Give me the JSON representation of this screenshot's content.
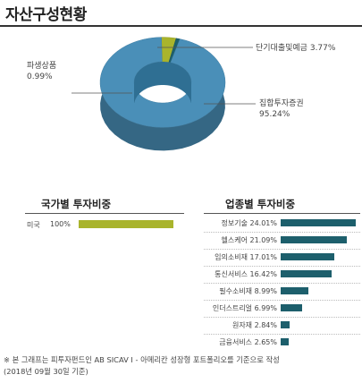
{
  "title": "자산구성현황",
  "chart_data": [
    {
      "type": "pie",
      "title": "",
      "slices": [
        {
          "label": "집합투자증권",
          "value": 95.24,
          "value_label": "95.24%",
          "color": "#4a8fb8"
        },
        {
          "label": "단기대출및예금",
          "value": 3.77,
          "value_label": "3.77%",
          "color": "#a9b42c"
        },
        {
          "label": "파생상품",
          "value": 0.99,
          "value_label": "0.99%",
          "color": "#1d5f6c"
        }
      ]
    },
    {
      "type": "bar",
      "title": "국가별 투자비중",
      "categories": [
        "미국"
      ],
      "values": [
        100
      ],
      "value_labels": [
        "100%"
      ],
      "color": "#a9b42c"
    },
    {
      "type": "bar",
      "title": "업종별 투자비중",
      "categories": [
        "정보기술",
        "헬스케어",
        "임의소비재",
        "통신서비스",
        "필수소비재",
        "인더스트리얼",
        "원자재",
        "금융서비스"
      ],
      "values": [
        24.01,
        21.09,
        17.01,
        16.42,
        8.99,
        6.99,
        2.84,
        2.65
      ],
      "value_labels": [
        "24.01%",
        "21.09%",
        "17.01%",
        "16.42%",
        "8.99%",
        "6.99%",
        "2.84%",
        "2.65%"
      ],
      "color": "#1d5f6c"
    }
  ],
  "footnote": {
    "line1": "※ 본 그래프는 피투자펀드인 AB SICAV I - 아메리칸 성장형 포트폴리오를 기준으로 작성",
    "line2": "(2018년 09월 30일 기준)"
  }
}
